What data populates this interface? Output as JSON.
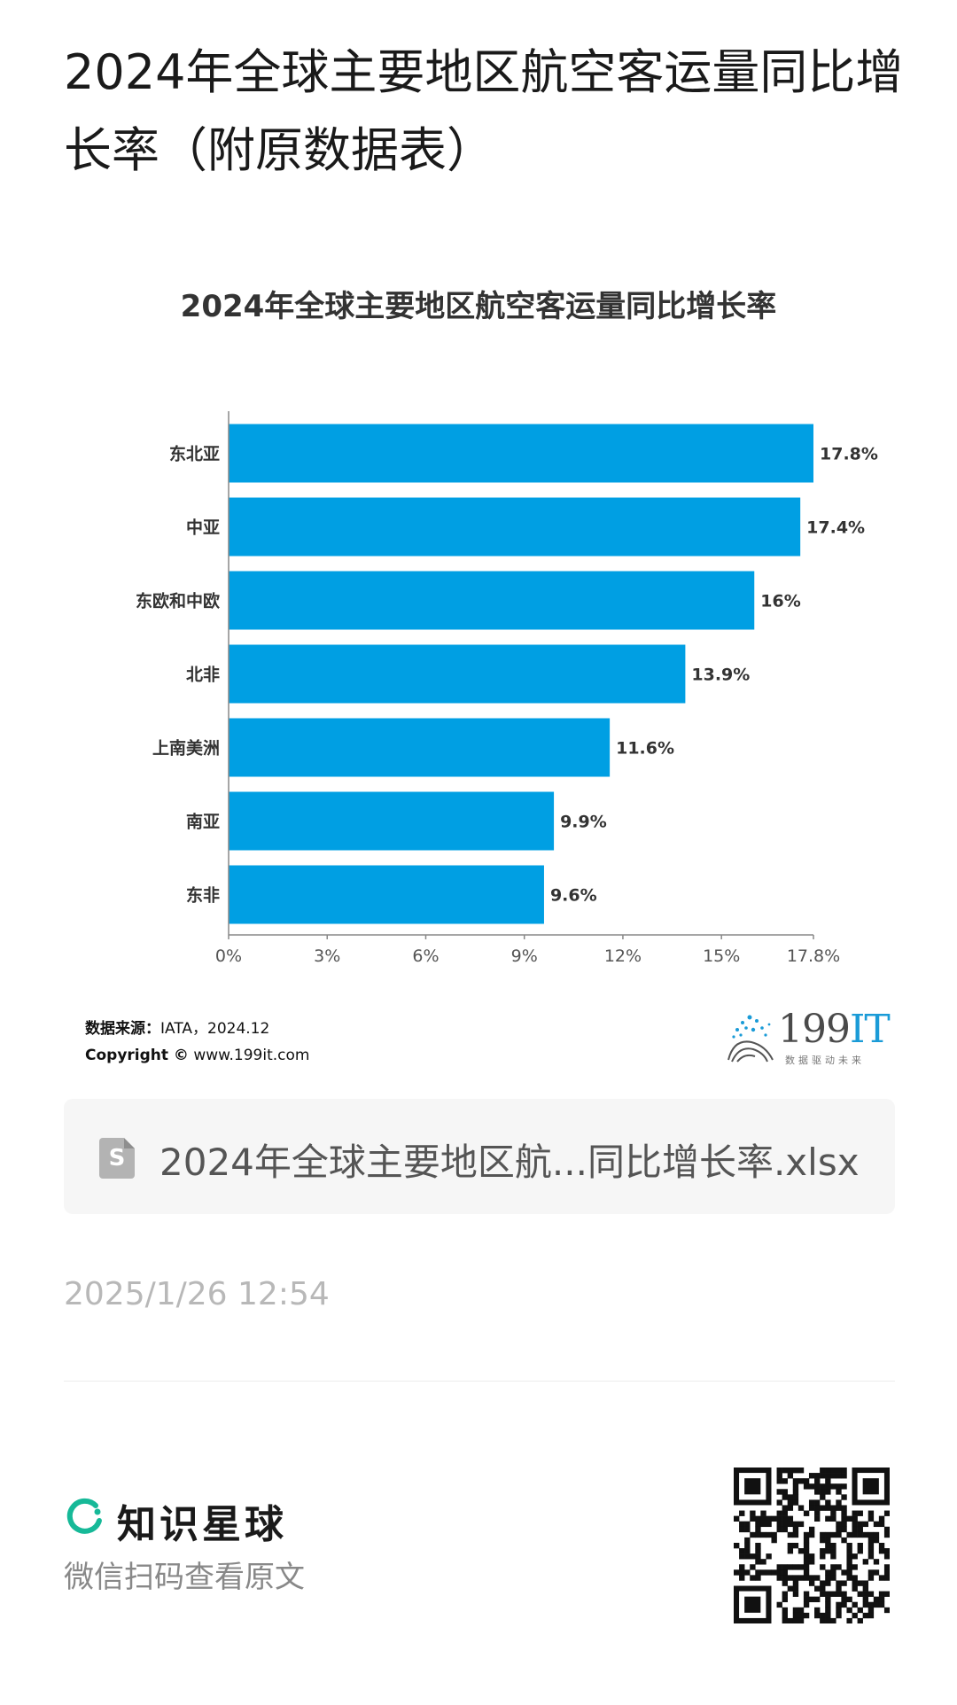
{
  "page": {
    "title": "2024年全球主要地区航空客运量同比增长率（附原数据表）"
  },
  "chart_data": {
    "type": "bar",
    "orientation": "horizontal",
    "title": "2024年全球主要地区航空客运量同比增长率",
    "categories": [
      "东北亚",
      "中亚",
      "东欧和中欧",
      "北非",
      "上南美洲",
      "南亚",
      "东非"
    ],
    "values": [
      17.8,
      17.4,
      16,
      13.9,
      11.6,
      9.9,
      9.6
    ],
    "value_labels": [
      "17.8%",
      "17.4%",
      "16%",
      "13.9%",
      "11.6%",
      "9.9%",
      "9.6%"
    ],
    "xticks": [
      "0%",
      "3%",
      "6%",
      "9%",
      "12%",
      "15%",
      "17.8%"
    ],
    "xtick_values": [
      0,
      3,
      6,
      9,
      12,
      15,
      17.8
    ],
    "xlim": [
      0,
      17.8
    ],
    "bar_color": "#009fe3",
    "grid": false,
    "legend": "none"
  },
  "source": {
    "label": "数据来源：",
    "value": "IATA，2024.12",
    "copyright_label": "Copyright ©",
    "copyright_value": "www.199it.com"
  },
  "logo": {
    "main": "199",
    "accent": "IT",
    "tagline": "数据驱动未来"
  },
  "attachment": {
    "file_name": "2024年全球主要地区航...同比增长率.xlsx",
    "icon": "spreadsheet-file-icon",
    "icon_letter": "S"
  },
  "meta": {
    "timestamp": "2025/1/26 12:54"
  },
  "footer": {
    "brand_name": "知识星球",
    "scan_text": "微信扫码查看原文",
    "brand_color": "#16b998"
  }
}
